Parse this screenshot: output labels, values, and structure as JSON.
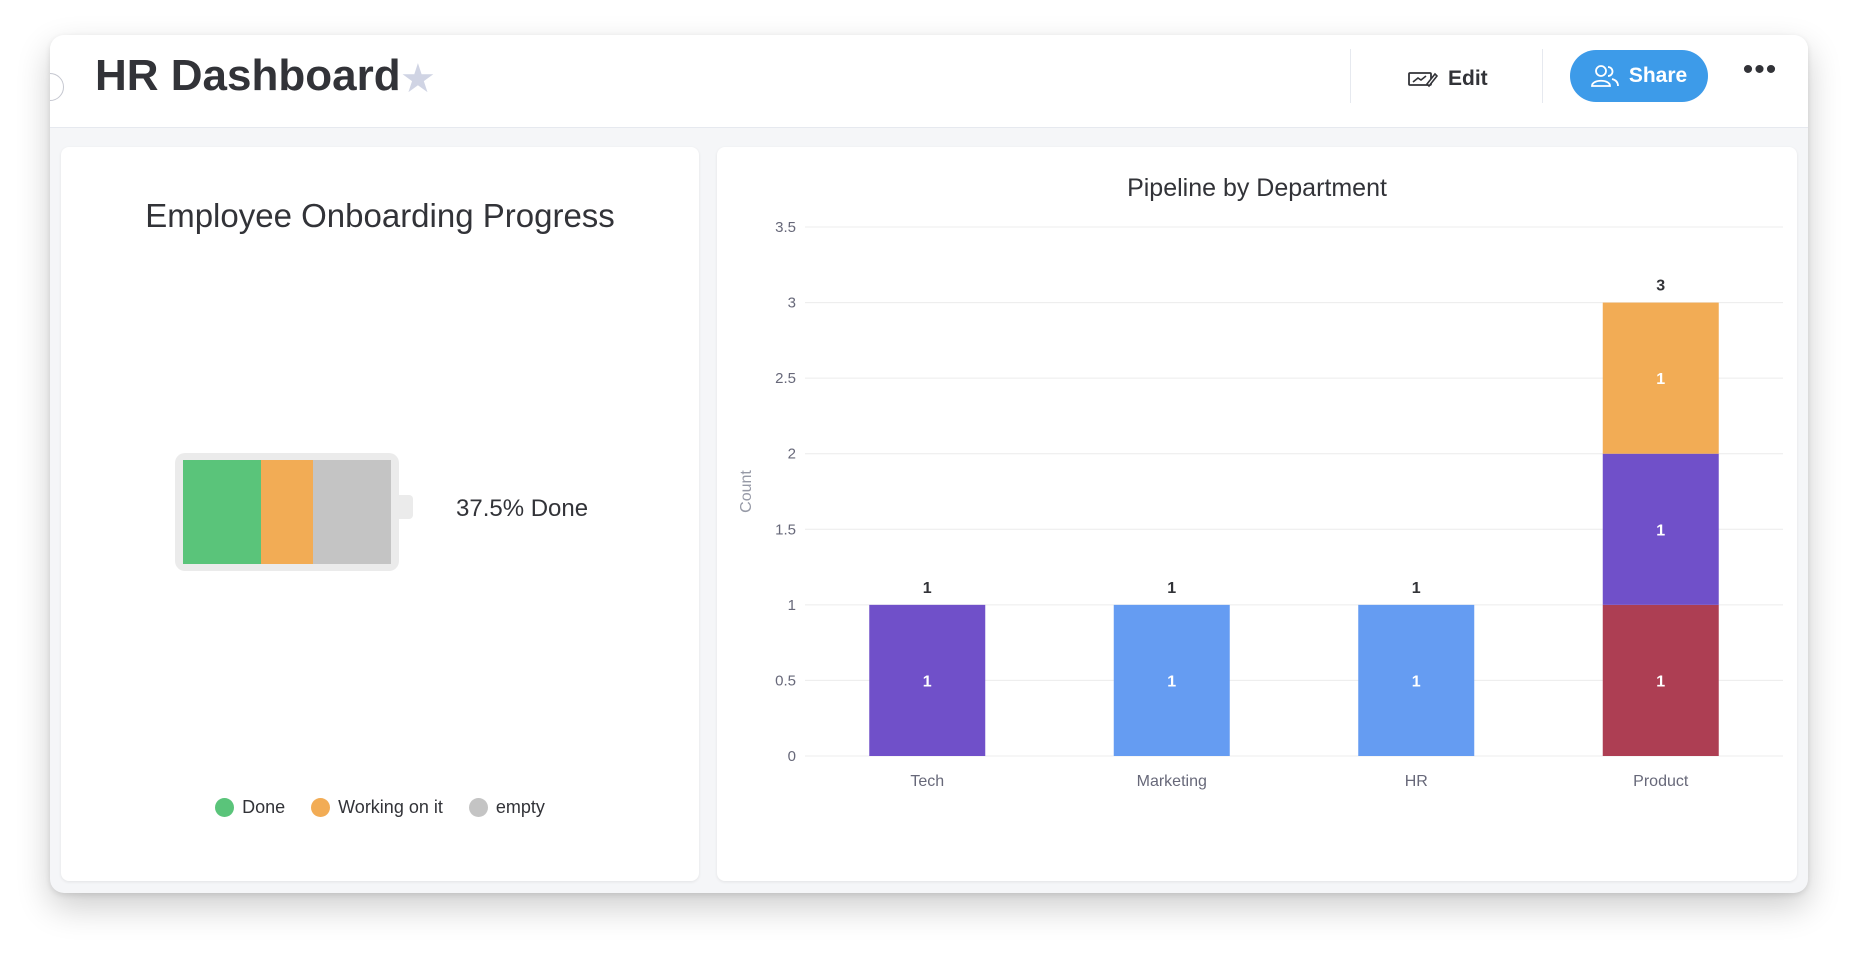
{
  "header": {
    "title": "HR Dashboard",
    "edit_label": "Edit",
    "share_label": "Share",
    "more_label": "•••"
  },
  "onboarding": {
    "title": "Employee Onboarding Progress",
    "progress_text": "37.5% Done",
    "segments": [
      {
        "label": "Done",
        "fraction": 0.375,
        "color": "#5ac47a"
      },
      {
        "label": "Working on it",
        "fraction": 0.25,
        "color": "#f2ac55"
      },
      {
        "label": "empty",
        "fraction": 0.375,
        "color": "#c4c4c4"
      }
    ]
  },
  "chart_data": {
    "type": "bar",
    "stacked": true,
    "title": "Pipeline by Department",
    "ylabel": "Count",
    "xlabel": "",
    "ylim": [
      0,
      3.5
    ],
    "yticks": [
      "0",
      "0.5",
      "1",
      "1.5",
      "2",
      "2.5",
      "3",
      "3.5"
    ],
    "categories": [
      "Tech",
      "Marketing",
      "HR",
      "Product"
    ],
    "totals": [
      "1",
      "1",
      "1",
      "3"
    ],
    "stacks": [
      [
        {
          "value": 1,
          "label": "1",
          "color": "#7050c9"
        }
      ],
      [
        {
          "value": 1,
          "label": "1",
          "color": "#659cf2"
        }
      ],
      [
        {
          "value": 1,
          "label": "1",
          "color": "#659cf2"
        }
      ],
      [
        {
          "value": 1,
          "label": "1",
          "color": "#ad3e53"
        },
        {
          "value": 1,
          "label": "1",
          "color": "#7050c9"
        },
        {
          "value": 1,
          "label": "1",
          "color": "#f2ac55"
        }
      ]
    ]
  }
}
